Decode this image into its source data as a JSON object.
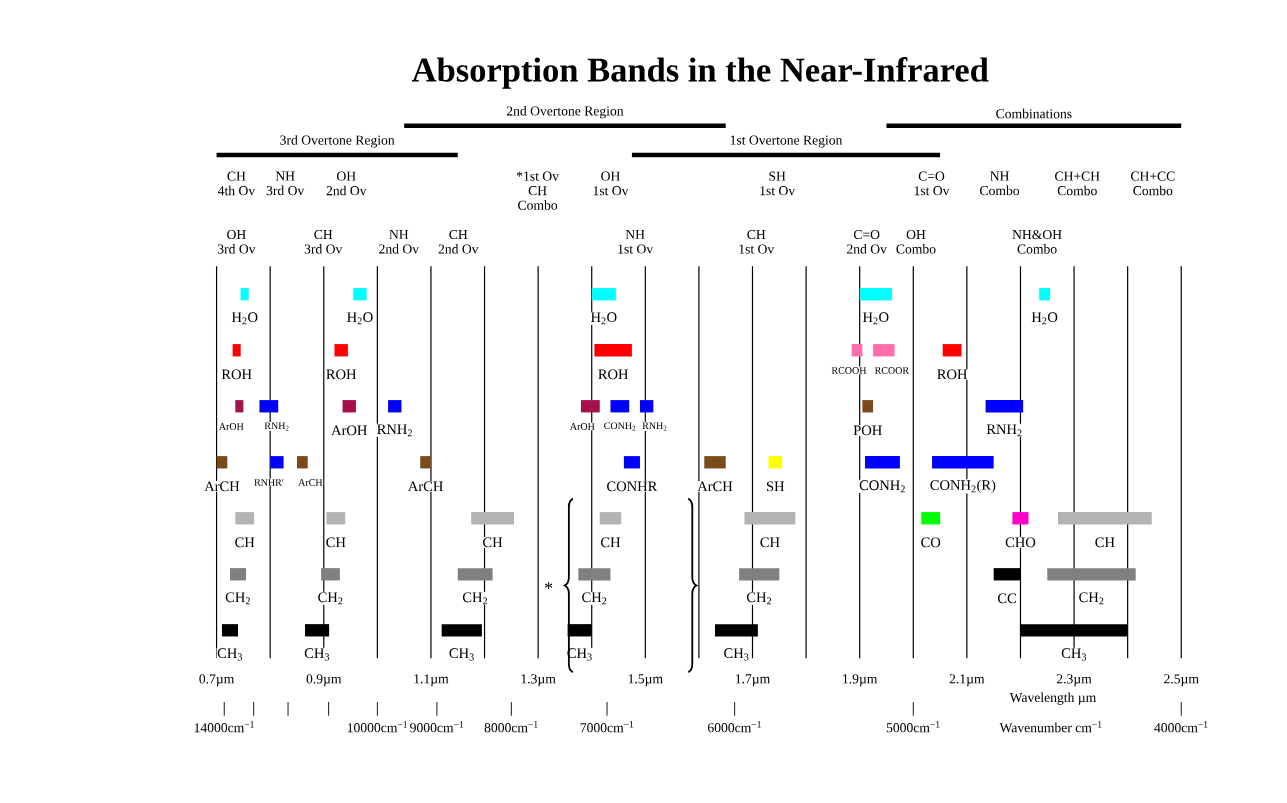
{
  "chart_data": {
    "type": "bar",
    "orientation": "horizontal",
    "title": "Absorption Bands in the Near-Infrared",
    "xlabel": "Wavelength µm",
    "categories": [
      null,
      null,
      null,
      null,
      null,
      null,
      null
    ],
    "series": [
      {
        "name": "H$_{2}$O",
        "color": "#00ffff",
        "values": [
          0.015,
          null,
          null,
          null,
          null,
          null,
          null
        ],
        "base": [
          0.745,
          null,
          null,
          null,
          null,
          null,
          null
        ]
      },
      {
        "name": "H$_{2}$O",
        "color": "#00ffff",
        "values": [
          0.025,
          null,
          null,
          null,
          null,
          null,
          null
        ],
        "base": [
          0.955,
          null,
          null,
          null,
          null,
          null,
          null
        ]
      },
      {
        "name": "H$_{2}$O",
        "color": "#00ffff",
        "values": [
          0.045,
          null,
          null,
          null,
          null,
          null,
          null
        ],
        "base": [
          1.4,
          null,
          null,
          null,
          null,
          null,
          null
        ]
      },
      {
        "name": "H$_{2}$O",
        "color": "#00ffff",
        "values": [
          0.06,
          null,
          null,
          null,
          null,
          null,
          null
        ],
        "base": [
          1.9,
          null,
          null,
          null,
          null,
          null,
          null
        ]
      },
      {
        "name": "H$_{2}$O",
        "color": "#00ffff",
        "values": [
          0.02,
          null,
          null,
          null,
          null,
          null,
          null
        ],
        "base": [
          2.235,
          null,
          null,
          null,
          null,
          null,
          null
        ]
      },
      {
        "name": "ROH",
        "color": "#ff0000",
        "values": [
          null,
          0.015,
          null,
          null,
          null,
          null,
          null
        ],
        "base": [
          null,
          0.73,
          null,
          null,
          null,
          null,
          null
        ]
      },
      {
        "name": "ROH",
        "color": "#ff0000",
        "values": [
          null,
          0.025,
          null,
          null,
          null,
          null,
          null
        ],
        "base": [
          null,
          0.92,
          null,
          null,
          null,
          null,
          null
        ]
      },
      {
        "name": "ROH",
        "color": "#ff0000",
        "values": [
          null,
          0.07,
          null,
          null,
          null,
          null,
          null
        ],
        "base": [
          null,
          1.405,
          null,
          null,
          null,
          null,
          null
        ]
      },
      {
        "name": "RCOOH",
        "color": "#ff6eaa",
        "values": [
          null,
          0.02,
          null,
          null,
          null,
          null,
          null
        ],
        "base": [
          null,
          1.885,
          null,
          null,
          null,
          null,
          null
        ]
      },
      {
        "name": "RCOOR",
        "color": "#ff6eaa",
        "values": [
          null,
          0.04,
          null,
          null,
          null,
          null,
          null
        ],
        "base": [
          null,
          1.925,
          null,
          null,
          null,
          null,
          null
        ]
      },
      {
        "name": "ROH",
        "color": "#ff0000",
        "values": [
          null,
          0.035,
          null,
          null,
          null,
          null,
          null
        ],
        "base": [
          null,
          2.055,
          null,
          null,
          null,
          null,
          null
        ]
      },
      {
        "name": "ArOH",
        "color": "#a50f4a",
        "values": [
          null,
          null,
          0.015,
          null,
          null,
          null,
          null
        ],
        "base": [
          null,
          null,
          0.735,
          null,
          null,
          null,
          null
        ]
      },
      {
        "name": "RNH$_{2}$",
        "color": "#0000ff",
        "values": [
          null,
          null,
          0.035,
          null,
          null,
          null,
          null
        ],
        "base": [
          null,
          null,
          0.78,
          null,
          null,
          null,
          null
        ]
      },
      {
        "name": "ArOH",
        "color": "#a50f4a",
        "values": [
          null,
          null,
          0.025,
          null,
          null,
          null,
          null
        ],
        "base": [
          null,
          null,
          0.935,
          null,
          null,
          null,
          null
        ]
      },
      {
        "name": "RNH$_{2}$",
        "color": "#0000ff",
        "values": [
          null,
          null,
          0.025,
          null,
          null,
          null,
          null
        ],
        "base": [
          null,
          null,
          1.02,
          null,
          null,
          null,
          null
        ]
      },
      {
        "name": "ArOH",
        "color": "#a50f4a",
        "values": [
          null,
          null,
          0.035,
          null,
          null,
          null,
          null
        ],
        "base": [
          null,
          null,
          1.38,
          null,
          null,
          null,
          null
        ]
      },
      {
        "name": "CONH$_{2}$",
        "color": "#0000ff",
        "values": [
          null,
          null,
          0.035,
          null,
          null,
          null,
          null
        ],
        "base": [
          null,
          null,
          1.435,
          null,
          null,
          null,
          null
        ]
      },
      {
        "name": "RNH$_{2}$",
        "color": "#0000ff",
        "values": [
          null,
          null,
          0.025,
          null,
          null,
          null,
          null
        ],
        "base": [
          null,
          null,
          1.49,
          null,
          null,
          null,
          null
        ]
      },
      {
        "name": "POH",
        "color": "#7b4a1a",
        "values": [
          null,
          null,
          0.02,
          null,
          null,
          null,
          null
        ],
        "base": [
          null,
          null,
          1.905,
          null,
          null,
          null,
          null
        ]
      },
      {
        "name": "RNH$_{2}$",
        "color": "#0000ff",
        "values": [
          null,
          null,
          0.07,
          null,
          null,
          null,
          null
        ],
        "base": [
          null,
          null,
          2.135,
          null,
          null,
          null,
          null
        ]
      },
      {
        "name": "ArCH",
        "color": "#7b4a1a",
        "values": [
          null,
          null,
          null,
          0.02,
          null,
          null,
          null
        ],
        "base": [
          null,
          null,
          null,
          0.7,
          null,
          null,
          null
        ]
      },
      {
        "name": "RNHR'",
        "color": "#0000ff",
        "values": [
          null,
          null,
          null,
          0.025,
          null,
          null,
          null
        ],
        "base": [
          null,
          null,
          null,
          0.8,
          null,
          null,
          null
        ]
      },
      {
        "name": "ArCH",
        "color": "#7b4a1a",
        "values": [
          null,
          null,
          null,
          0.02,
          null,
          null,
          null
        ],
        "base": [
          null,
          null,
          null,
          0.85,
          null,
          null,
          null
        ]
      },
      {
        "name": "ArCH",
        "color": "#7b4a1a",
        "values": [
          null,
          null,
          null,
          0.02,
          null,
          null,
          null
        ],
        "base": [
          null,
          null,
          null,
          1.08,
          null,
          null,
          null
        ]
      },
      {
        "name": "CONHR",
        "color": "#0000ff",
        "values": [
          null,
          null,
          null,
          0.03,
          null,
          null,
          null
        ],
        "base": [
          null,
          null,
          null,
          1.46,
          null,
          null,
          null
        ]
      },
      {
        "name": "ArCH",
        "color": "#7b4a1a",
        "values": [
          null,
          null,
          null,
          0.04,
          null,
          null,
          null
        ],
        "base": [
          null,
          null,
          null,
          1.61,
          null,
          null,
          null
        ]
      },
      {
        "name": "SH",
        "color": "#ffff00",
        "values": [
          null,
          null,
          null,
          0.025,
          null,
          null,
          null
        ],
        "base": [
          null,
          null,
          null,
          1.73,
          null,
          null,
          null
        ]
      },
      {
        "name": "CONH$_{2}$",
        "color": "#0000ff",
        "values": [
          null,
          null,
          null,
          0.065,
          null,
          null,
          null
        ],
        "base": [
          null,
          null,
          null,
          1.91,
          null,
          null,
          null
        ]
      },
      {
        "name": "CONH$_{2}$(R)",
        "color": "#0000ff",
        "values": [
          null,
          null,
          null,
          0.115,
          null,
          null,
          null
        ],
        "base": [
          null,
          null,
          null,
          2.035,
          null,
          null,
          null
        ]
      },
      {
        "name": "CH",
        "color": "#b3b3b3",
        "values": [
          null,
          null,
          null,
          null,
          0.035,
          null,
          null
        ],
        "base": [
          null,
          null,
          null,
          null,
          0.735,
          null,
          null
        ]
      },
      {
        "name": "CH",
        "color": "#b3b3b3",
        "values": [
          null,
          null,
          null,
          null,
          0.035,
          null,
          null
        ],
        "base": [
          null,
          null,
          null,
          null,
          0.905,
          null,
          null
        ]
      },
      {
        "name": "CH",
        "color": "#b3b3b3",
        "values": [
          null,
          null,
          null,
          null,
          0.08,
          null,
          null
        ],
        "base": [
          null,
          null,
          null,
          null,
          1.175,
          null,
          null
        ]
      },
      {
        "name": "CH",
        "color": "#b3b3b3",
        "values": [
          null,
          null,
          null,
          null,
          0.04,
          null,
          null
        ],
        "base": [
          null,
          null,
          null,
          null,
          1.415,
          null,
          null
        ]
      },
      {
        "name": "CH",
        "color": "#b3b3b3",
        "values": [
          null,
          null,
          null,
          null,
          0.095,
          null,
          null
        ],
        "base": [
          null,
          null,
          null,
          null,
          1.685,
          null,
          null
        ]
      },
      {
        "name": "CO",
        "color": "#00ff00",
        "values": [
          null,
          null,
          null,
          null,
          0.035,
          null,
          null
        ],
        "base": [
          null,
          null,
          null,
          null,
          2.015,
          null,
          null
        ]
      },
      {
        "name": "CHO",
        "color": "#ff00c8",
        "values": [
          null,
          null,
          null,
          null,
          0.03,
          null,
          null
        ],
        "base": [
          null,
          null,
          null,
          null,
          2.185,
          null,
          null
        ]
      },
      {
        "name": "CH",
        "color": "#b3b3b3",
        "values": [
          null,
          null,
          null,
          null,
          0.175,
          null,
          null
        ],
        "base": [
          null,
          null,
          null,
          null,
          2.27,
          null,
          null
        ]
      },
      {
        "name": "CH$_{2}$",
        "color": "#808080",
        "values": [
          null,
          null,
          null,
          null,
          null,
          0.03,
          null
        ],
        "base": [
          null,
          null,
          null,
          null,
          null,
          0.725,
          null
        ]
      },
      {
        "name": "CH$_{2}$",
        "color": "#808080",
        "values": [
          null,
          null,
          null,
          null,
          null,
          0.035,
          null
        ],
        "base": [
          null,
          null,
          null,
          null,
          null,
          0.895,
          null
        ]
      },
      {
        "name": "CH$_{2}$",
        "color": "#808080",
        "values": [
          null,
          null,
          null,
          null,
          null,
          0.065,
          null
        ],
        "base": [
          null,
          null,
          null,
          null,
          null,
          1.15,
          null
        ]
      },
      {
        "name": "CH$_{2}$",
        "color": "#808080",
        "values": [
          null,
          null,
          null,
          null,
          null,
          0.06,
          null
        ],
        "base": [
          null,
          null,
          null,
          null,
          null,
          1.375,
          null
        ]
      },
      {
        "name": "CH$_{2}$",
        "color": "#808080",
        "values": [
          null,
          null,
          null,
          null,
          null,
          0.075,
          null
        ],
        "base": [
          null,
          null,
          null,
          null,
          null,
          1.675,
          null
        ]
      },
      {
        "name": "CC",
        "color": "#000000",
        "values": [
          null,
          null,
          null,
          null,
          null,
          0.05,
          null
        ],
        "base": [
          null,
          null,
          null,
          null,
          null,
          2.15,
          null
        ]
      },
      {
        "name": "CH$_{2}$",
        "color": "#808080",
        "values": [
          null,
          null,
          null,
          null,
          null,
          0.165,
          null
        ],
        "base": [
          null,
          null,
          null,
          null,
          null,
          2.25,
          null
        ]
      },
      {
        "name": "CH$_{3}$",
        "color": "#000000",
        "values": [
          null,
          null,
          null,
          null,
          null,
          null,
          0.03
        ],
        "base": [
          null,
          null,
          null,
          null,
          null,
          null,
          0.71
        ]
      },
      {
        "name": "CH$_{3}$",
        "color": "#000000",
        "values": [
          null,
          null,
          null,
          null,
          null,
          null,
          0.045
        ],
        "base": [
          null,
          null,
          null,
          null,
          null,
          null,
          0.865
        ]
      },
      {
        "name": "CH$_{3}$",
        "color": "#000000",
        "values": [
          null,
          null,
          null,
          null,
          null,
          null,
          0.075
        ],
        "base": [
          null,
          null,
          null,
          null,
          null,
          null,
          1.12
        ]
      },
      {
        "name": "CH$_{3}$",
        "color": "#000000",
        "values": [
          null,
          null,
          null,
          null,
          null,
          null,
          0.045
        ],
        "base": [
          null,
          null,
          null,
          null,
          null,
          null,
          1.355
        ]
      },
      {
        "name": "CH$_{3}$",
        "color": "#000000",
        "values": [
          null,
          null,
          null,
          null,
          null,
          null,
          0.08
        ],
        "base": [
          null,
          null,
          null,
          null,
          null,
          null,
          1.63
        ]
      },
      {
        "name": "CH$_{3}$",
        "color": "#000000",
        "values": [
          null,
          null,
          null,
          null,
          null,
          null,
          0.2
        ],
        "base": [
          null,
          null,
          null,
          null,
          null,
          null,
          2.2
        ]
      }
    ],
    "xlim": [
      0.7,
      2.5
    ],
    "xticks": [
      {
        "value": 0.7,
        "label": "0.7µm"
      },
      {
        "value": 0.8,
        "label": null
      },
      {
        "value": 0.9,
        "label": "0.9µm"
      },
      {
        "value": 1.0,
        "label": null
      },
      {
        "value": 1.1,
        "label": "1.1µm"
      },
      {
        "value": 1.2,
        "label": null
      },
      {
        "value": 1.3,
        "label": "1.3µm"
      },
      {
        "value": 1.4,
        "label": null
      },
      {
        "value": 1.5,
        "label": "1.5µm"
      },
      {
        "value": 1.6,
        "label": null
      },
      {
        "value": 1.7,
        "label": "1.7µm"
      },
      {
        "value": 1.8,
        "label": null
      },
      {
        "value": 1.9,
        "label": "1.9µm"
      },
      {
        "value": 2.0,
        "label": null
      },
      {
        "value": 2.1,
        "label": "2.1µm"
      },
      {
        "value": 2.2,
        "label": null
      },
      {
        "value": 2.3,
        "label": "2.3µm"
      },
      {
        "value": 2.4,
        "label": null
      },
      {
        "value": 2.5,
        "label": "2.5µm"
      }
    ],
    "grid": "x",
    "annotations": [
      "CH\n4th Ov",
      "NH\n3rd Ov",
      "OH\n2nd Ov",
      "*1st Ov\nCH\nCombo",
      "OH\n1st Ov",
      "SH\n1st Ov",
      "C=O\n1st Ov",
      "NH\nCombo",
      "CH+CH\nCombo",
      "CH+CC\nCombo",
      "OH\n3rd Ov",
      "CH\n3rd Ov",
      "NH\n2nd Ov",
      "CH\n2nd Ov",
      "NH\n1st Ov",
      "CH\n1st Ov",
      "C=O\n2nd Ov",
      "OH\nCombo",
      "NH&OH\nCombo",
      "*",
      "14000cm$^{−1}$",
      "10000cm$^{−1}$",
      "9000cm$^{−1}$",
      "8000cm$^{−1}$",
      "7000cm$^{−1}$",
      "6000cm$^{−1}$",
      "5000cm$^{−1}$",
      "4000cm$^{−1}$",
      "Wavenumber cm$^{−1}$",
      "3rd Overtone Region",
      "2nd Overtone Region",
      "1st Overtone Region",
      "Combinations"
    ]
  }
}
